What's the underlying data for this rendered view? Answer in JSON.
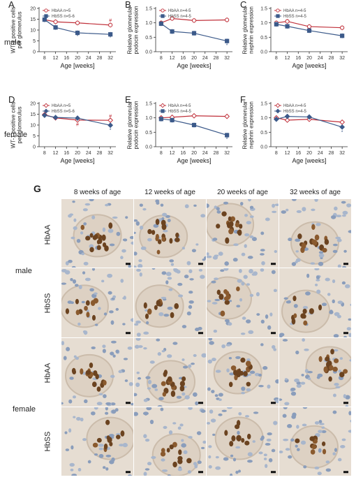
{
  "row_labels": {
    "male": "male",
    "female": "female"
  },
  "chart_data": [
    {
      "panel": "A",
      "type": "line",
      "x": [
        8,
        12,
        20,
        32
      ],
      "xlabel": "Age [weeks]",
      "ylabel": [
        "WT-1 positive cells",
        "per glomerulus"
      ],
      "ylim": [
        0,
        20
      ],
      "yticks": [
        0,
        5,
        10,
        15,
        20
      ],
      "series": [
        {
          "name": "HbAA n=5",
          "color": "#c0303a",
          "marker": "circle",
          "values": [
            14.8,
            13.8,
            13.3,
            12.3
          ]
        },
        {
          "name": "HbSS n=5-6",
          "color": "#3c5a8a",
          "marker": "square",
          "values": [
            14.8,
            11.2,
            8.7,
            8.0
          ]
        }
      ],
      "annotations": [
        {
          "text": "*",
          "x": 20,
          "y": 7.1,
          "color": "#3c5a8a"
        },
        {
          "text": "*",
          "x": 32,
          "y": 6.5,
          "color": "#3c5a8a"
        },
        {
          "text": "#",
          "x": 32,
          "y": 14.3,
          "color": "#c0303a"
        }
      ]
    },
    {
      "panel": "B",
      "type": "line",
      "x": [
        8,
        12,
        20,
        32
      ],
      "xlabel": "Age [weeks]",
      "ylabel": [
        "Relative glomerular",
        "podocin expression"
      ],
      "ylim": [
        0,
        1.5
      ],
      "yticks": [
        0,
        0.5,
        1.0,
        1.5
      ],
      "series": [
        {
          "name": "HbAA n=4-5",
          "color": "#c0303a",
          "marker": "circle",
          "values": [
            1.0,
            1.15,
            1.08,
            1.1
          ]
        },
        {
          "name": "HbSS n=4-5",
          "color": "#3c5a8a",
          "marker": "square",
          "values": [
            0.97,
            0.7,
            0.64,
            0.37
          ]
        }
      ],
      "annotations": [
        {
          "text": "*",
          "x": 32,
          "y": 0.22,
          "color": "#3c5a8a"
        }
      ]
    },
    {
      "panel": "C",
      "type": "line",
      "x": [
        8,
        12,
        20,
        32
      ],
      "xlabel": "Age [weeks]",
      "ylabel": [
        "Relative glomerular",
        "nephrin expression"
      ],
      "ylim": [
        0,
        1.5
      ],
      "yticks": [
        0,
        0.5,
        1.0,
        1.5
      ],
      "series": [
        {
          "name": "HbAA n=4-5",
          "color": "#c0303a",
          "marker": "circle",
          "values": [
            1.0,
            1.05,
            0.87,
            0.83
          ]
        },
        {
          "name": "HbSS n=4-5",
          "color": "#3c5a8a",
          "marker": "square",
          "values": [
            0.95,
            0.88,
            0.73,
            0.55
          ]
        }
      ],
      "annotations": []
    },
    {
      "panel": "D",
      "type": "line",
      "x": [
        8,
        12,
        20,
        32
      ],
      "xlabel": "Age [weeks]",
      "ylabel": [
        "WT-1 positive cells",
        "per glomerulus"
      ],
      "ylim": [
        0,
        20
      ],
      "yticks": [
        0,
        5,
        10,
        15,
        20
      ],
      "series": [
        {
          "name": "HbAA n=5",
          "color": "#c0303a",
          "marker": "diamond",
          "values": [
            14.8,
            13.3,
            12.3,
            12.2
          ]
        },
        {
          "name": "HbSS n=5-6",
          "color": "#3c5a8a",
          "marker": "diamond",
          "values": [
            14.5,
            13.5,
            13.2,
            9.9
          ]
        }
      ],
      "annotations": [
        {
          "text": "#",
          "x": 20,
          "y": 10.2,
          "color": "#c0303a"
        },
        {
          "text": "#",
          "x": 32,
          "y": 14.1,
          "color": "#c0303a"
        },
        {
          "text": "*",
          "x": 32,
          "y": 7.6,
          "color": "#3c5a8a"
        }
      ]
    },
    {
      "panel": "E",
      "type": "line",
      "x": [
        8,
        12,
        20,
        32
      ],
      "xlabel": "Age [weeks]",
      "ylabel": [
        "Relative glomerular",
        "podocin expression"
      ],
      "ylim": [
        0,
        1.5
      ],
      "yticks": [
        0,
        0.5,
        1.0,
        1.5
      ],
      "series": [
        {
          "name": "HbAA n=4-5",
          "color": "#c0303a",
          "marker": "diamond",
          "values": [
            1.0,
            1.02,
            1.07,
            1.05
          ]
        },
        {
          "name": "HbSS n=4-5",
          "color": "#3c5a8a",
          "marker": "square",
          "values": [
            0.96,
            0.92,
            0.75,
            0.4
          ]
        }
      ],
      "annotations": [
        {
          "text": "*",
          "x": 32,
          "y": 0.25,
          "color": "#3c5a8a"
        }
      ]
    },
    {
      "panel": "F",
      "type": "line",
      "x": [
        8,
        12,
        20,
        32
      ],
      "xlabel": "Age [weeks]",
      "ylabel": [
        "Relative glomerular",
        "nephrin expression"
      ],
      "ylim": [
        0,
        1.5
      ],
      "yticks": [
        0,
        0.5,
        1.0,
        1.5
      ],
      "series": [
        {
          "name": "HbAA n=4-5",
          "color": "#c0303a",
          "marker": "diamond",
          "values": [
            1.0,
            0.92,
            0.95,
            0.85
          ]
        },
        {
          "name": "HbSS n=4-5",
          "color": "#3c5a8a",
          "marker": "diamond",
          "values": [
            0.95,
            1.05,
            1.03,
            0.68
          ]
        }
      ],
      "annotations": [
        {
          "text": "*",
          "x": 32,
          "y": 0.5,
          "color": "#3c5a8a"
        }
      ]
    }
  ],
  "micrographs": {
    "panel_label": "G",
    "columns": [
      "8 weeks of age",
      "12 weeks of age",
      "20 weeks of age",
      "32 weeks of age"
    ],
    "row_groups": [
      "HbAA",
      "HbSS",
      "HbAA",
      "HbSS"
    ],
    "sex_labels": [
      "male",
      "female"
    ]
  }
}
